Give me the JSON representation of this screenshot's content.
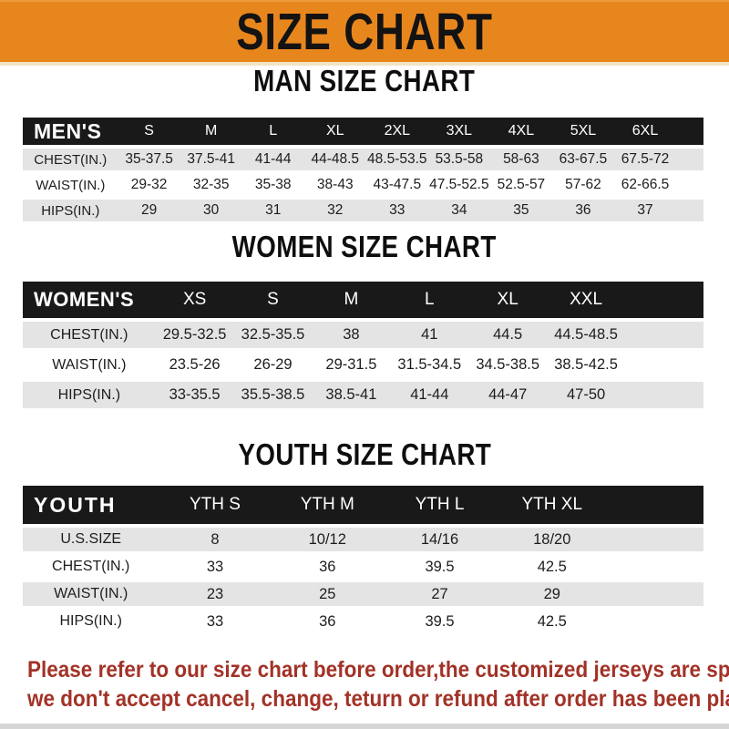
{
  "banner": {
    "title": "SIZE CHART"
  },
  "sections": [
    {
      "key": "men",
      "heading": "MAN SIZE CHART",
      "table": {
        "header_label": "MEN'S",
        "columns": [
          "S",
          "M",
          "L",
          "XL",
          "2XL",
          "3XL",
          "4XL",
          "5XL",
          "6XL"
        ],
        "rows": [
          {
            "label": "CHEST(IN.)",
            "values": [
              "35-37.5",
              "37.5-41",
              "41-44",
              "44-48.5",
              "48.5-53.5",
              "53.5-58",
              "58-63",
              "63-67.5",
              "67.5-72"
            ]
          },
          {
            "label": "WAIST(IN.)",
            "values": [
              "29-32",
              "32-35",
              "35-38",
              "38-43",
              "43-47.5",
              "47.5-52.5",
              "52.5-57",
              "57-62",
              "62-66.5"
            ]
          },
          {
            "label": "HIPS(IN.)",
            "values": [
              "29",
              "30",
              "31",
              "32",
              "33",
              "34",
              "35",
              "36",
              "37"
            ]
          }
        ]
      }
    },
    {
      "key": "women",
      "heading": "WOMEN SIZE CHART",
      "table": {
        "header_label": "WOMEN'S",
        "columns": [
          "XS",
          "S",
          "M",
          "L",
          "XL",
          "XXL"
        ],
        "rows": [
          {
            "label": "CHEST(IN.)",
            "values": [
              "29.5-32.5",
              "32.5-35.5",
              "38",
              "41",
              "44.5",
              "44.5-48.5"
            ]
          },
          {
            "label": "WAIST(IN.)",
            "values": [
              "23.5-26",
              "26-29",
              "29-31.5",
              "31.5-34.5",
              "34.5-38.5",
              "38.5-42.5"
            ]
          },
          {
            "label": "HIPS(IN.)",
            "values": [
              "33-35.5",
              "35.5-38.5",
              "38.5-41",
              "41-44",
              "44-47",
              "47-50"
            ]
          }
        ]
      }
    },
    {
      "key": "youth",
      "heading": "YOUTH SIZE CHART",
      "table": {
        "header_label": "YOUTH",
        "columns": [
          "YTH S",
          "YTH M",
          "YTH L",
          "YTH XL"
        ],
        "rows": [
          {
            "label": "U.S.SIZE",
            "values": [
              "8",
              "10/12",
              "14/16",
              "18/20"
            ]
          },
          {
            "label": "CHEST(IN.)",
            "values": [
              "33",
              "36",
              "39.5",
              "42.5"
            ]
          },
          {
            "label": "WAIST(IN.)",
            "values": [
              "23",
              "25",
              "27",
              "29"
            ]
          },
          {
            "label": "HIPS(IN.)",
            "values": [
              "33",
              "36",
              "39.5",
              "42.5"
            ]
          }
        ]
      }
    }
  ],
  "footer": {
    "line1": "Please refer to our size chart before order,the customized jerseys are special products,",
    "line2": "we don't accept cancel, change, teturn or refund after order has been placed!"
  },
  "colors": {
    "banner_bg": "#E8861E",
    "header_bar": "#191919",
    "row_gray": "#E4E4E4",
    "footer_red": "#A23227"
  }
}
